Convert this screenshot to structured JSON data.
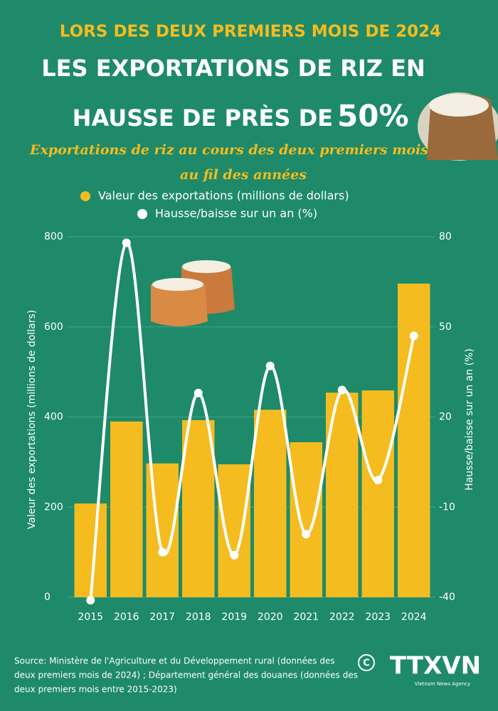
{
  "header": "LORS DES DEUX PREMIERS MOIS DE 2024",
  "title": [
    "LES EXPORTATIONS DE RIZ EN",
    "HAUSSE DE PRÈS DE",
    "50%"
  ],
  "subtitle": [
    "Exportations de riz au cours des deux premiers mois",
    "au fil des années"
  ],
  "source": [
    "Source: Ministère de l'Agriculture et du Développement rural (données des",
    "deux premiers mois de 2024) ; Département général des douanes (données des",
    "deux premiers mois entre 2015-2023)"
  ],
  "logo": {
    "symbol": "C",
    "name": "TTXVN",
    "tagline": "Vietnam News Agency"
  },
  "chart_data": {
    "type": "bar",
    "categories": [
      "2015",
      "2016",
      "2017",
      "2018",
      "2019",
      "2020",
      "2021",
      "2022",
      "2023",
      "2024"
    ],
    "series": [
      {
        "name": "Valeur des exportations (millions de dollars)",
        "color": "#f5bc1f",
        "type": "bar",
        "values": [
          208,
          390,
          297,
          393,
          295,
          416,
          344,
          454,
          459,
          696
        ]
      },
      {
        "name": "Hausse/baisse sur un an (%)",
        "color": "#ffffff",
        "type": "line",
        "axis": "y2",
        "values": [
          -41,
          78,
          -25,
          28,
          -26,
          37,
          -19,
          29,
          -1,
          47
        ]
      }
    ],
    "ylabel": "Valeur des exportations (millions de dollars)",
    "y2label": "Hausse/baisse sur un an (%)",
    "ylim": [
      0,
      800
    ],
    "yticks": [
      0,
      200,
      400,
      600,
      800
    ],
    "y2lim": [
      -40,
      80
    ],
    "y2ticks": [
      -40,
      -10,
      20,
      50,
      80
    ],
    "grid": true
  }
}
